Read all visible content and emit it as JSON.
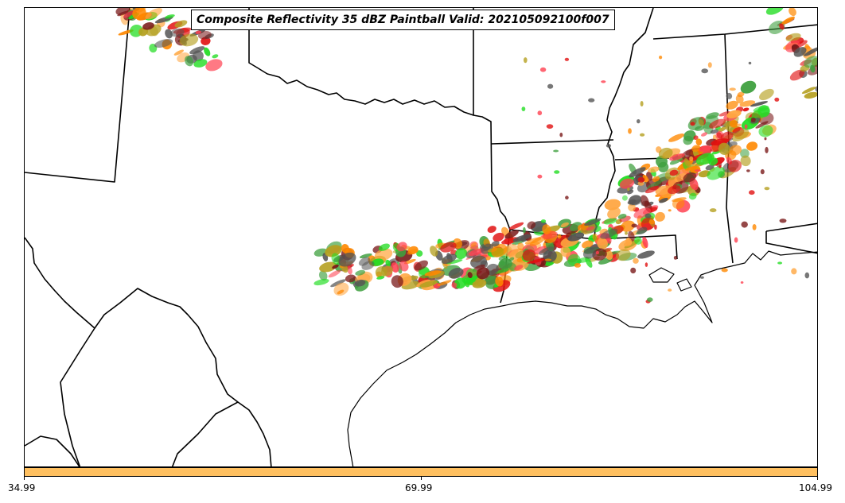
{
  "title": "Composite Reflectivity 35 dBZ Paintball Valid: 202105092100f007",
  "colorbar": {
    "fill_color": "#ffc060",
    "ticks": [
      "34.99",
      "69.99",
      "104.99"
    ]
  },
  "colors": {
    "boundary": "#000000",
    "paintball": [
      "#ff8800",
      "#ffa640",
      "#e11010",
      "#ff4050",
      "#7a1a1a",
      "#555555",
      "#3fa03f",
      "#22dd22",
      "#b5a020"
    ]
  }
}
